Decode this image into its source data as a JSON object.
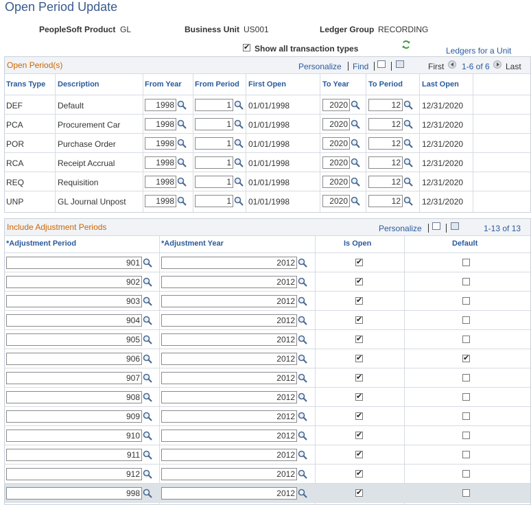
{
  "page_title": "Open Period Update",
  "header": {
    "product_label": "PeopleSoft Product",
    "product_value": "GL",
    "bu_label": "Business Unit",
    "bu_value": "US001",
    "lg_label": "Ledger Group",
    "lg_value": "RECORDING",
    "show_all_label": "Show all transaction types",
    "show_all_checked": true,
    "ledgers_link": "Ledgers for a Unit"
  },
  "open_periods": {
    "title": "Open Period(s)",
    "personalize": "Personalize",
    "find": "Find",
    "first": "First",
    "range": "1-6 of 6",
    "last": "Last",
    "columns": [
      "Trans Type",
      "Description",
      "From Year",
      "From Period",
      "First Open",
      "To Year",
      "To Period",
      "Last Open"
    ],
    "rows": [
      {
        "trans_type": "DEF",
        "description": "Default",
        "from_year": "1998",
        "from_period": "1",
        "first_open": "01/01/1998",
        "to_year": "2020",
        "to_period": "12",
        "last_open": "12/31/2020"
      },
      {
        "trans_type": "PCA",
        "description": "Procurement Car",
        "from_year": "1998",
        "from_period": "1",
        "first_open": "01/01/1998",
        "to_year": "2020",
        "to_period": "12",
        "last_open": "12/31/2020"
      },
      {
        "trans_type": "POR",
        "description": "Purchase Order",
        "from_year": "1998",
        "from_period": "1",
        "first_open": "01/01/1998",
        "to_year": "2020",
        "to_period": "12",
        "last_open": "12/31/2020"
      },
      {
        "trans_type": "RCA",
        "description": "Receipt Accrual",
        "from_year": "1998",
        "from_period": "1",
        "first_open": "01/01/1998",
        "to_year": "2020",
        "to_period": "12",
        "last_open": "12/31/2020"
      },
      {
        "trans_type": "REQ",
        "description": "Requisition",
        "from_year": "1998",
        "from_period": "1",
        "first_open": "01/01/1998",
        "to_year": "2020",
        "to_period": "12",
        "last_open": "12/31/2020"
      },
      {
        "trans_type": "UNP",
        "description": "GL Journal Unpost",
        "from_year": "1998",
        "from_period": "1",
        "first_open": "01/01/1998",
        "to_year": "2020",
        "to_period": "12",
        "last_open": "12/31/2020"
      }
    ]
  },
  "adjustments": {
    "title": "Include Adjustment Periods",
    "personalize": "Personalize",
    "range": "1-13 of 13",
    "columns": [
      "*Adjustment Period",
      "*Adjustment Year",
      "Is Open",
      "Default"
    ],
    "rows": [
      {
        "period": "901",
        "year": "2012",
        "is_open": true,
        "default": false
      },
      {
        "period": "902",
        "year": "2012",
        "is_open": true,
        "default": false
      },
      {
        "period": "903",
        "year": "2012",
        "is_open": true,
        "default": false
      },
      {
        "period": "904",
        "year": "2012",
        "is_open": true,
        "default": false
      },
      {
        "period": "905",
        "year": "2012",
        "is_open": true,
        "default": false
      },
      {
        "period": "906",
        "year": "2012",
        "is_open": true,
        "default": true
      },
      {
        "period": "907",
        "year": "2012",
        "is_open": true,
        "default": false
      },
      {
        "period": "908",
        "year": "2012",
        "is_open": true,
        "default": false
      },
      {
        "period": "909",
        "year": "2012",
        "is_open": true,
        "default": false
      },
      {
        "period": "910",
        "year": "2012",
        "is_open": true,
        "default": false
      },
      {
        "period": "911",
        "year": "2012",
        "is_open": true,
        "default": false
      },
      {
        "period": "912",
        "year": "2012",
        "is_open": true,
        "default": false
      },
      {
        "period": "998",
        "year": "2012",
        "is_open": true,
        "default": false
      }
    ]
  },
  "colors": {
    "title": "#3a5a8c",
    "section_title": "#cc6600",
    "link": "#2a5a9c",
    "refresh": "#3aa03a"
  }
}
